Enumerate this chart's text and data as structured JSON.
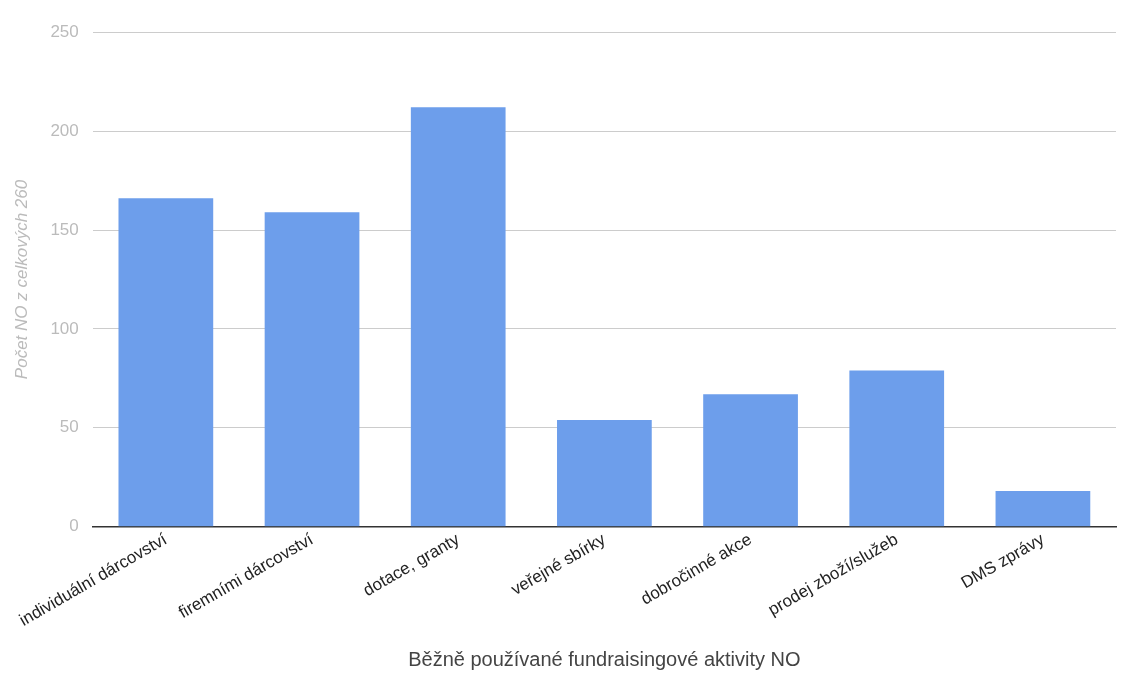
{
  "chart_data": {
    "type": "bar",
    "xlabel": "Běžně používané fundraisingové aktivity NO",
    "ylabel": "Počet NO z celkových 260",
    "categories": [
      "individuální dárcovství",
      "firemními dárcovství",
      "dotace, granty",
      "veřejné sbírky",
      "dobročinné akce",
      "prodej zboží/služeb",
      "DMS zprávy"
    ],
    "values": [
      166,
      159,
      212,
      54,
      67,
      79,
      18
    ],
    "color": "#6d9eeb",
    "ylim": [
      0,
      250
    ],
    "yticks": [
      0,
      50,
      100,
      150,
      200,
      250
    ],
    "grid": "y",
    "legend": false
  }
}
